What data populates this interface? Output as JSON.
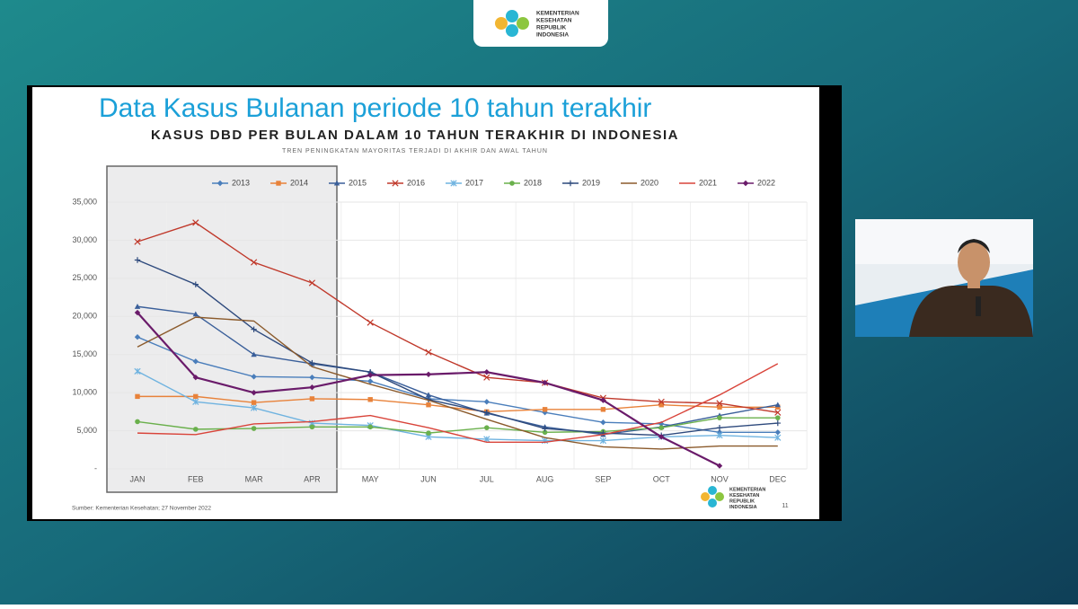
{
  "header": {
    "logo_lines": [
      "KEMENTERIAN",
      "KESEHATAN",
      "REPUBLIK",
      "INDONESIA"
    ]
  },
  "slide": {
    "heading": "Data Kasus Bulanan periode 10 tahun terakhir",
    "source": "Sumber: Kementerian Kesehatan; 27 November 2022",
    "page_number": 11,
    "logo_lines": [
      "KEMENTERIAN",
      "KESEHATAN",
      "REPUBLIK",
      "INDONESIA"
    ]
  },
  "chart_data": {
    "type": "line",
    "title": "KASUS DBD PER BULAN DALAM 10 TAHUN TERAKHIR DI INDONESIA",
    "subtitle": "TREN PENINGKATAN MAYORITAS TERJADI DI AKHIR DAN AWAL TAHUN",
    "categories": [
      "JAN",
      "FEB",
      "MAR",
      "APR",
      "MAY",
      "JUN",
      "JUL",
      "AUG",
      "SEP",
      "OCT",
      "NOV",
      "DEC"
    ],
    "ylim": [
      0,
      35000
    ],
    "yticks": [
      {
        "value": 0,
        "label": "-"
      },
      {
        "value": 5000,
        "label": "5,000"
      },
      {
        "value": 10000,
        "label": "10,000"
      },
      {
        "value": 15000,
        "label": "15,000"
      },
      {
        "value": 20000,
        "label": "20,000"
      },
      {
        "value": 25000,
        "label": "25,000"
      },
      {
        "value": 30000,
        "label": "30,000"
      },
      {
        "value": 35000,
        "label": "35,000"
      }
    ],
    "grid": true,
    "series": [
      {
        "name": "2013",
        "color": "#4a7ebb",
        "marker": "diamond",
        "values": [
          17300,
          14100,
          12100,
          12000,
          11500,
          9200,
          8800,
          7400,
          6100,
          5900,
          4800,
          4800
        ]
      },
      {
        "name": "2014",
        "color": "#e8823a",
        "marker": "square",
        "values": [
          9500,
          9500,
          8700,
          9200,
          9100,
          8400,
          7500,
          7800,
          7800,
          8400,
          8100,
          8100
        ]
      },
      {
        "name": "2015",
        "color": "#3a5f9a",
        "marker": "triangle",
        "values": [
          21300,
          20300,
          15000,
          13800,
          12700,
          9700,
          7300,
          5500,
          4500,
          5500,
          7000,
          8400
        ]
      },
      {
        "name": "2016",
        "color": "#c0392b",
        "marker": "x",
        "values": [
          29800,
          32300,
          27100,
          24400,
          19200,
          15300,
          12000,
          11300,
          9300,
          8800,
          8600,
          7400
        ]
      },
      {
        "name": "2017",
        "color": "#6fb3e0",
        "marker": "star",
        "values": [
          12800,
          8800,
          8000,
          6000,
          5700,
          4200,
          3900,
          3700,
          3700,
          4200,
          4400,
          4100
        ]
      },
      {
        "name": "2018",
        "color": "#6ab04c",
        "marker": "circle",
        "values": [
          6200,
          5200,
          5300,
          5500,
          5500,
          4700,
          5400,
          4800,
          4900,
          5400,
          6700,
          6700
        ]
      },
      {
        "name": "2019",
        "color": "#2e4a7d",
        "marker": "plus",
        "values": [
          27400,
          24200,
          18300,
          13900,
          12700,
          9100,
          7400,
          5300,
          4700,
          4400,
          5400,
          6000
        ]
      },
      {
        "name": "2020",
        "color": "#8b5a2b",
        "marker": "none",
        "values": [
          16000,
          19900,
          19400,
          13400,
          11100,
          9000,
          6500,
          4100,
          2900,
          2600,
          3000,
          3000
        ]
      },
      {
        "name": "2021",
        "color": "#d9443a",
        "marker": "none",
        "values": [
          4700,
          4500,
          5900,
          6200,
          7000,
          5400,
          3500,
          3500,
          4500,
          6100,
          9700,
          13800
        ]
      },
      {
        "name": "2022",
        "color": "#6a1b6a",
        "marker": "diamond",
        "values": [
          20500,
          12000,
          10000,
          10700,
          12300,
          12400,
          12700,
          11300,
          9000,
          4200,
          400,
          null
        ]
      }
    ]
  }
}
